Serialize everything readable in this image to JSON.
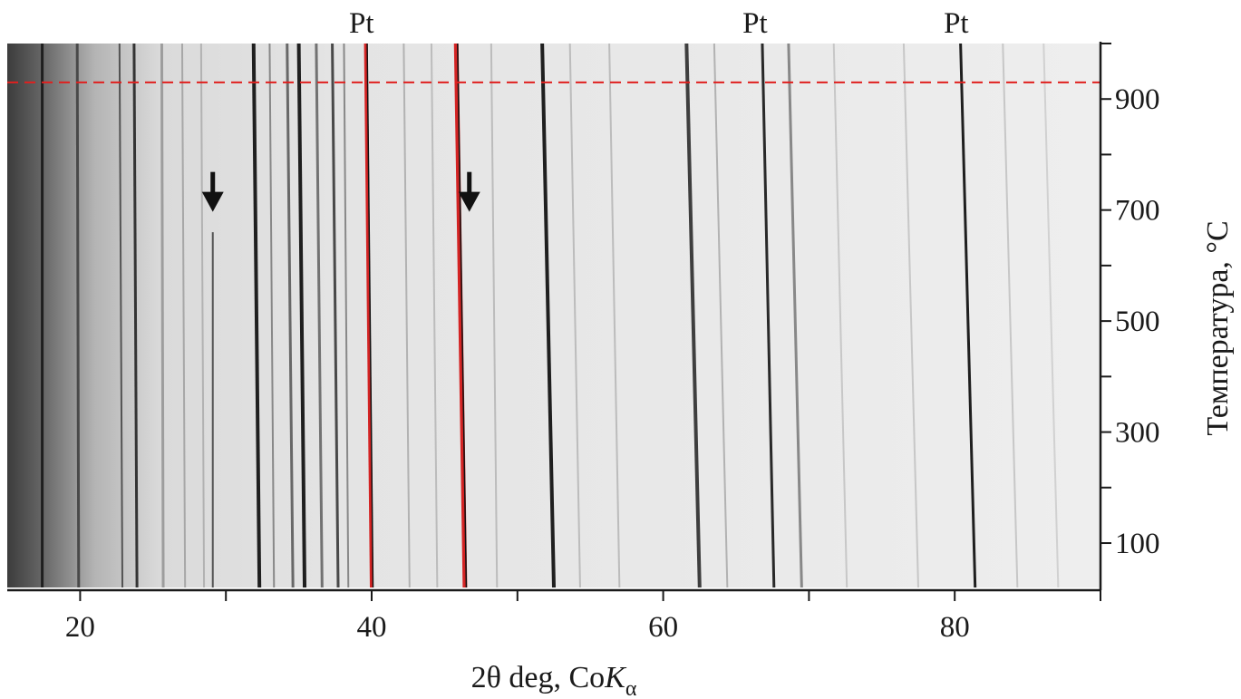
{
  "chart_data": {
    "type": "heatmap",
    "description_kind": "in-situ high-temperature X-ray diffraction map",
    "xlabel_prefix": "2θ deg, Co",
    "xlabel_symbol": "K",
    "xlabel_subscript": "α",
    "ylabel": "Температура, °C",
    "xlim": [
      15,
      90
    ],
    "ylim": [
      20,
      1000
    ],
    "x_ticks": [
      20,
      40,
      60,
      80
    ],
    "x_minor_ticks": [
      30,
      50,
      70,
      90
    ],
    "y_ticks": [
      100,
      300,
      500,
      700,
      900
    ],
    "y_minor_ticks": [
      200,
      400,
      600,
      800,
      1000
    ],
    "threshold_temperature": 930,
    "threshold_color": "#e0201f",
    "peak_labels": [
      {
        "label": "Pt",
        "two_theta": 39.8
      },
      {
        "label": "Pt",
        "two_theta": 66.8
      },
      {
        "label": "Pt",
        "two_theta": 80.6
      }
    ],
    "arrows": [
      {
        "two_theta": 29.1,
        "temperature": 700
      },
      {
        "two_theta": 46.7,
        "temperature": 700
      }
    ],
    "lines": [
      {
        "x0": 17.4,
        "x1": 17.4,
        "tmax": 1000,
        "intensity": 0.95,
        "width": 3
      },
      {
        "x0": 19.9,
        "x1": 19.8,
        "tmax": 1000,
        "intensity": 0.75,
        "width": 3
      },
      {
        "x0": 22.9,
        "x1": 22.7,
        "tmax": 1000,
        "intensity": 0.7,
        "width": 2
      },
      {
        "x0": 23.9,
        "x1": 23.7,
        "tmax": 1000,
        "intensity": 0.85,
        "width": 3
      },
      {
        "x0": 25.7,
        "x1": 25.6,
        "tmax": 1000,
        "intensity": 0.35,
        "width": 3
      },
      {
        "x0": 27.2,
        "x1": 27.0,
        "tmax": 1000,
        "intensity": 0.3,
        "width": 2
      },
      {
        "x0": 28.5,
        "x1": 28.3,
        "tmax": 1000,
        "intensity": 0.25,
        "width": 2
      },
      {
        "x0": 29.1,
        "x1": 29.1,
        "tmax": 660,
        "intensity": 0.7,
        "width": 2
      },
      {
        "x0": 32.3,
        "x1": 31.9,
        "tmax": 1000,
        "intensity": 0.95,
        "width": 4
      },
      {
        "x0": 33.3,
        "x1": 33.0,
        "tmax": 1000,
        "intensity": 0.45,
        "width": 2
      },
      {
        "x0": 34.6,
        "x1": 34.2,
        "tmax": 1000,
        "intensity": 0.6,
        "width": 3
      },
      {
        "x0": 35.4,
        "x1": 35.0,
        "tmax": 1000,
        "intensity": 0.95,
        "width": 4
      },
      {
        "x0": 36.6,
        "x1": 36.2,
        "tmax": 1000,
        "intensity": 0.55,
        "width": 3
      },
      {
        "x0": 37.7,
        "x1": 37.3,
        "tmax": 1000,
        "intensity": 0.75,
        "width": 3
      },
      {
        "x0": 38.4,
        "x1": 38.1,
        "tmax": 1000,
        "intensity": 0.45,
        "width": 2
      },
      {
        "x0": 40.0,
        "x1": 39.6,
        "tmax": 1000,
        "intensity": 1.0,
        "width": 4,
        "red": true
      },
      {
        "x0": 42.6,
        "x1": 42.2,
        "tmax": 1000,
        "intensity": 0.25,
        "width": 2
      },
      {
        "x0": 44.5,
        "x1": 44.1,
        "tmax": 1000,
        "intensity": 0.2,
        "width": 2
      },
      {
        "x0": 46.4,
        "x1": 45.8,
        "tmax": 1000,
        "intensity": 1.0,
        "width": 5,
        "red": true
      },
      {
        "x0": 48.6,
        "x1": 48.2,
        "tmax": 1000,
        "intensity": 0.2,
        "width": 2
      },
      {
        "x0": 52.5,
        "x1": 51.7,
        "tmax": 1000,
        "intensity": 0.95,
        "width": 4
      },
      {
        "x0": 54.3,
        "x1": 53.6,
        "tmax": 1000,
        "intensity": 0.2,
        "width": 2
      },
      {
        "x0": 57.0,
        "x1": 56.3,
        "tmax": 1000,
        "intensity": 0.2,
        "width": 2
      },
      {
        "x0": 62.5,
        "x1": 61.6,
        "tmax": 1000,
        "intensity": 0.8,
        "width": 4
      },
      {
        "x0": 64.4,
        "x1": 63.5,
        "tmax": 1000,
        "intensity": 0.25,
        "width": 2
      },
      {
        "x0": 67.6,
        "x1": 66.8,
        "tmax": 1000,
        "intensity": 0.9,
        "width": 3
      },
      {
        "x0": 69.5,
        "x1": 68.6,
        "tmax": 1000,
        "intensity": 0.45,
        "width": 3
      },
      {
        "x0": 72.6,
        "x1": 71.7,
        "tmax": 1000,
        "intensity": 0.15,
        "width": 2
      },
      {
        "x0": 77.5,
        "x1": 76.5,
        "tmax": 1000,
        "intensity": 0.15,
        "width": 2
      },
      {
        "x0": 81.4,
        "x1": 80.4,
        "tmax": 1000,
        "intensity": 0.95,
        "width": 3
      },
      {
        "x0": 84.3,
        "x1": 83.3,
        "tmax": 1000,
        "intensity": 0.15,
        "width": 2
      },
      {
        "x0": 87.1,
        "x1": 86.1,
        "tmax": 1000,
        "intensity": 0.1,
        "width": 2
      }
    ]
  }
}
